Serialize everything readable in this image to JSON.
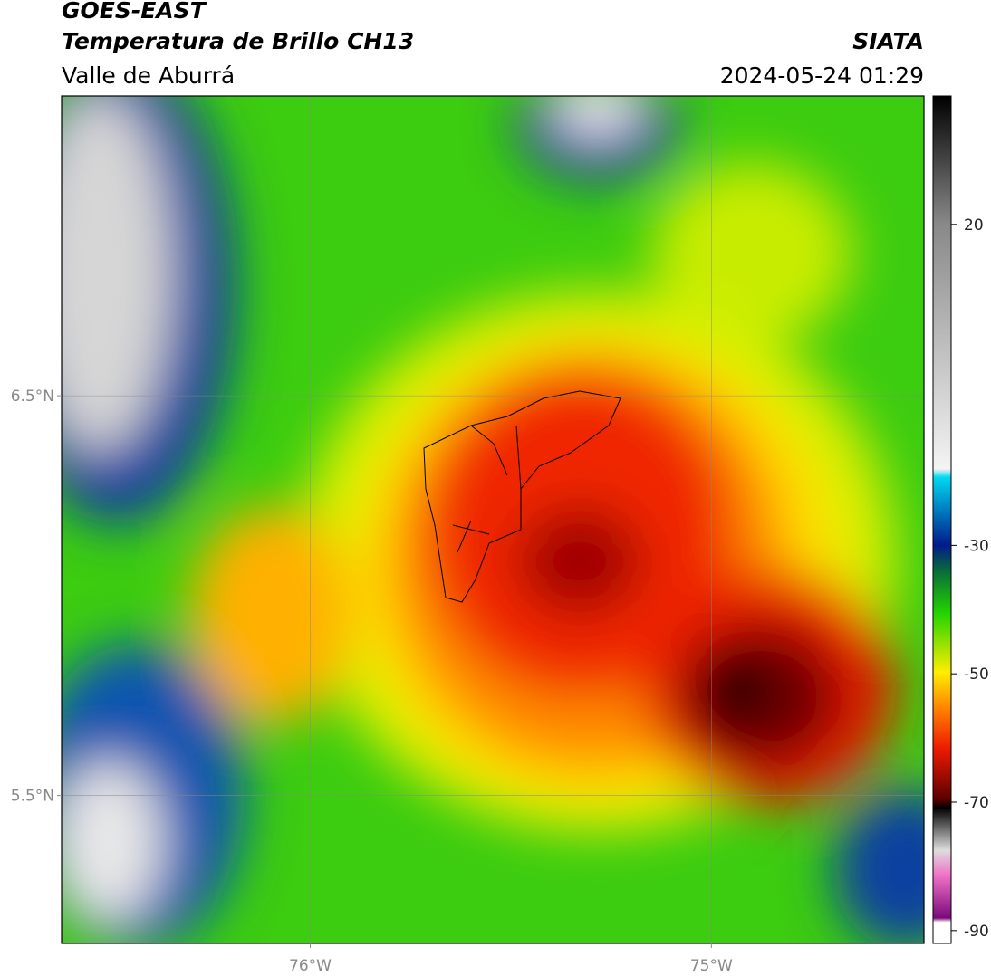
{
  "header": {
    "title": "GOES-EAST",
    "subtitle": "Temperatura de Brillo CH13",
    "region": "Valle de Aburrá",
    "source": "SIATA",
    "timestamp": "2024-05-24 01:29"
  },
  "map": {
    "xlim": [
      -76.62,
      -74.47
    ],
    "ylim": [
      5.13,
      7.25
    ],
    "xticks": [
      {
        "value": -76,
        "label": "76°W"
      },
      {
        "value": -75,
        "label": "75°W"
      }
    ],
    "yticks": [
      {
        "value": 6.5,
        "label": "6.5°N"
      },
      {
        "value": 5.5,
        "label": "5.5°N"
      }
    ],
    "grid": true
  },
  "colorbar": {
    "clim": [
      -92,
      40
    ],
    "ticks": [
      20,
      -30,
      -50,
      -70,
      -90
    ]
  }
}
